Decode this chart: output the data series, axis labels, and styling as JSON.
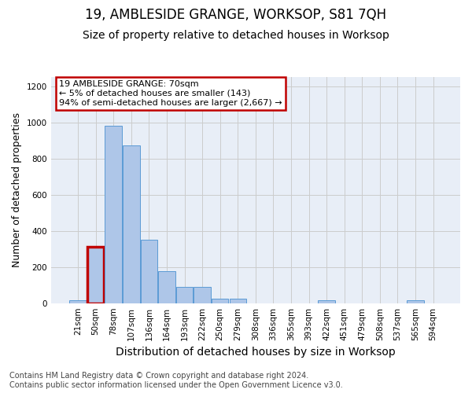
{
  "title": "19, AMBLESIDE GRANGE, WORKSOP, S81 7QH",
  "subtitle": "Size of property relative to detached houses in Worksop",
  "xlabel": "Distribution of detached houses by size in Worksop",
  "ylabel": "Number of detached properties",
  "footer_line1": "Contains HM Land Registry data © Crown copyright and database right 2024.",
  "footer_line2": "Contains public sector information licensed under the Open Government Licence v3.0.",
  "bin_labels": [
    "21sqm",
    "50sqm",
    "78sqm",
    "107sqm",
    "136sqm",
    "164sqm",
    "193sqm",
    "222sqm",
    "250sqm",
    "279sqm",
    "308sqm",
    "336sqm",
    "365sqm",
    "393sqm",
    "422sqm",
    "451sqm",
    "479sqm",
    "508sqm",
    "537sqm",
    "565sqm",
    "594sqm"
  ],
  "bar_heights": [
    15,
    312,
    980,
    872,
    350,
    175,
    90,
    90,
    25,
    25,
    0,
    0,
    0,
    0,
    15,
    0,
    0,
    0,
    0,
    15,
    0
  ],
  "bar_color": "#aec6e8",
  "bar_edge_color": "#5b9bd5",
  "highlight_bar_index": 1,
  "highlight_color": "#c00000",
  "annotation_line1": "19 AMBLESIDE GRANGE: 70sqm",
  "annotation_line2": "← 5% of detached houses are smaller (143)",
  "annotation_line3": "94% of semi-detached houses are larger (2,667) →",
  "annotation_box_color": "#c00000",
  "annotation_box_bg": "#ffffff",
  "ylim": [
    0,
    1250
  ],
  "yticks": [
    0,
    200,
    400,
    600,
    800,
    1000,
    1200
  ],
  "grid_color": "#cccccc",
  "bg_color": "#e8eef7",
  "title_fontsize": 12,
  "subtitle_fontsize": 10,
  "xlabel_fontsize": 10,
  "ylabel_fontsize": 9,
  "tick_fontsize": 7.5,
  "annotation_fontsize": 8,
  "footer_fontsize": 7
}
